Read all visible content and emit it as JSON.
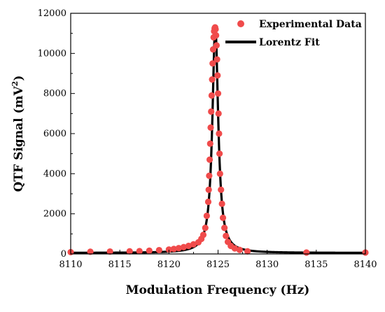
{
  "chart_data": {
    "type": "scatter",
    "xlabel": "Modulation Frequency (Hz)",
    "ylabel_main": "QTF Signal (mV",
    "ylabel_sup": "2",
    "ylabel_end": ")",
    "xlim": [
      8110,
      8140
    ],
    "ylim": [
      0,
      12000
    ],
    "xticks": [
      8110,
      8115,
      8120,
      8125,
      8130,
      8135,
      8140
    ],
    "yticks": [
      0,
      2000,
      4000,
      6000,
      8000,
      10000,
      12000
    ],
    "legend_position": "top-right",
    "colors": {
      "scatter": "#f04b4b",
      "fit": "#000000"
    },
    "series": [
      {
        "name": "Experimental Data",
        "kind": "scatter",
        "points": [
          [
            8110.0,
            90
          ],
          [
            8112.0,
            110
          ],
          [
            8114.0,
            120
          ],
          [
            8116.0,
            130
          ],
          [
            8117.0,
            140
          ],
          [
            8118.0,
            160
          ],
          [
            8119.0,
            190
          ],
          [
            8120.0,
            220
          ],
          [
            8120.5,
            250
          ],
          [
            8121.0,
            290
          ],
          [
            8121.5,
            340
          ],
          [
            8122.0,
            400
          ],
          [
            8122.5,
            480
          ],
          [
            8123.0,
            580
          ],
          [
            8123.3,
            750
          ],
          [
            8123.5,
            950
          ],
          [
            8123.7,
            1300
          ],
          [
            8123.85,
            1900
          ],
          [
            8124.0,
            2600
          ],
          [
            8124.05,
            3200
          ],
          [
            8124.1,
            3900
          ],
          [
            8124.15,
            4700
          ],
          [
            8124.2,
            5500
          ],
          [
            8124.25,
            6300
          ],
          [
            8124.3,
            7100
          ],
          [
            8124.35,
            7900
          ],
          [
            8124.4,
            8700
          ],
          [
            8124.45,
            9500
          ],
          [
            8124.5,
            10200
          ],
          [
            8124.55,
            10800
          ],
          [
            8124.6,
            11100
          ],
          [
            8124.65,
            11250
          ],
          [
            8124.7,
            11300
          ],
          [
            8124.75,
            11200
          ],
          [
            8124.8,
            10900
          ],
          [
            8124.85,
            10400
          ],
          [
            8124.9,
            9700
          ],
          [
            8124.95,
            8900
          ],
          [
            8125.0,
            8000
          ],
          [
            8125.05,
            7000
          ],
          [
            8125.1,
            6000
          ],
          [
            8125.15,
            5000
          ],
          [
            8125.2,
            4000
          ],
          [
            8125.3,
            3200
          ],
          [
            8125.4,
            2500
          ],
          [
            8125.5,
            1800
          ],
          [
            8125.65,
            1300
          ],
          [
            8125.8,
            900
          ],
          [
            8126.0,
            600
          ],
          [
            8126.3,
            400
          ],
          [
            8126.7,
            280
          ],
          [
            8127.2,
            200
          ],
          [
            8128.0,
            130
          ],
          [
            8134.0,
            70
          ],
          [
            8140.0,
            70
          ]
        ]
      },
      {
        "name": "Lorentz Fit",
        "kind": "line",
        "model": {
          "amplitude": 11300,
          "center": 8124.72,
          "hwhm": 0.36,
          "offset": 50
        }
      }
    ]
  }
}
